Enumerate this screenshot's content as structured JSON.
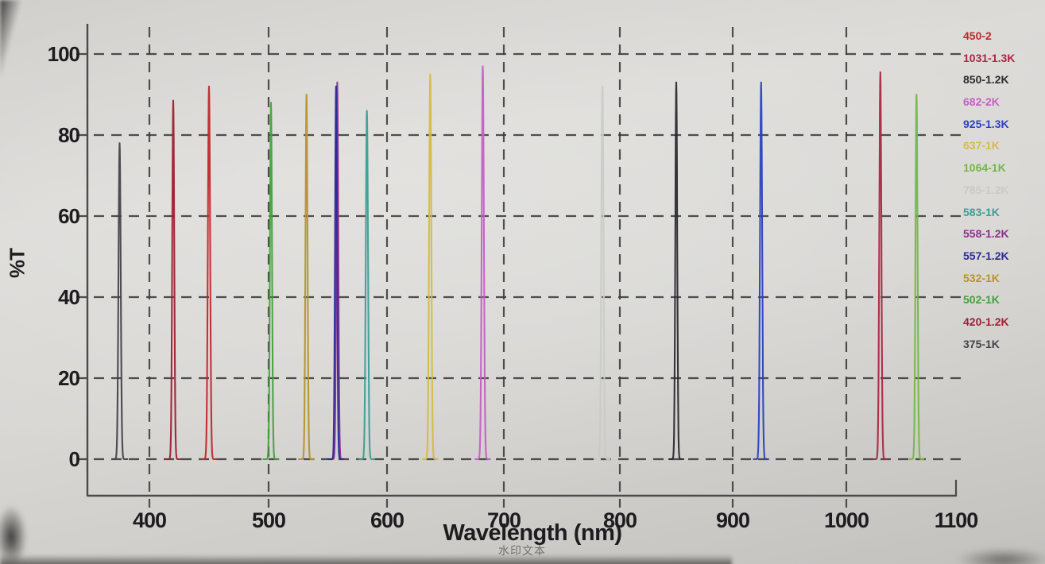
{
  "chart_data": {
    "type": "line",
    "title": "",
    "xlabel": "Wavelength (nm)",
    "ylabel": "%T",
    "xlim": [
      350,
      1100
    ],
    "ylim": [
      0,
      100
    ],
    "x_ticks": [
      400,
      500,
      600,
      700,
      800,
      900,
      1000,
      1100
    ],
    "y_ticks": [
      0,
      20,
      40,
      60,
      80,
      100
    ],
    "grid": "dashed",
    "legend_position": "right",
    "series": [
      {
        "name": "450-2",
        "color": "#c1272d",
        "center_nm": 450,
        "peak_t": 92.0,
        "fwhm_nm": 2.2
      },
      {
        "name": "1031-1.3K",
        "color": "#aa2842",
        "center_nm": 1031,
        "peak_t": 95.5,
        "fwhm_nm": 2.2
      },
      {
        "name": "850-1.2K",
        "color": "#2b2b31",
        "center_nm": 850,
        "peak_t": 93.0,
        "fwhm_nm": 2.0
      },
      {
        "name": "682-2K",
        "color": "#c45fc3",
        "center_nm": 682,
        "peak_t": 97.0,
        "fwhm_nm": 2.2
      },
      {
        "name": "925-1.3K",
        "color": "#2c42c0",
        "center_nm": 925,
        "peak_t": 93.0,
        "fwhm_nm": 2.2
      },
      {
        "name": "637-1K",
        "color": "#d5bc43",
        "center_nm": 637,
        "peak_t": 95.0,
        "fwhm_nm": 2.2
      },
      {
        "name": "1064-1K",
        "color": "#74b748",
        "center_nm": 1064,
        "peak_t": 90.0,
        "fwhm_nm": 2.2
      },
      {
        "name": "785-1.2K",
        "color": "#c9cbc6",
        "center_nm": 785,
        "peak_t": 92.0,
        "fwhm_nm": 2.2
      },
      {
        "name": "583-1K",
        "color": "#3c9e95",
        "center_nm": 583,
        "peak_t": 86.0,
        "fwhm_nm": 2.2
      },
      {
        "name": "558-1.2K",
        "color": "#912e8e",
        "center_nm": 558,
        "peak_t": 93.0,
        "fwhm_nm": 2.0
      },
      {
        "name": "557-1.2K",
        "color": "#2b2b97",
        "center_nm": 557,
        "peak_t": 92.0,
        "fwhm_nm": 2.0
      },
      {
        "name": "532-1K",
        "color": "#b4942d",
        "center_nm": 532,
        "peak_t": 90.0,
        "fwhm_nm": 2.0
      },
      {
        "name": "502-1K",
        "color": "#46a03d",
        "center_nm": 502,
        "peak_t": 88.0,
        "fwhm_nm": 2.0
      },
      {
        "name": "420-1.2K",
        "color": "#9e2131",
        "center_nm": 420,
        "peak_t": 88.5,
        "fwhm_nm": 2.0
      },
      {
        "name": "375-1K",
        "color": "#43434a",
        "center_nm": 375,
        "peak_t": 78.0,
        "fwhm_nm": 2.2
      }
    ],
    "watermark": "水印文本"
  }
}
